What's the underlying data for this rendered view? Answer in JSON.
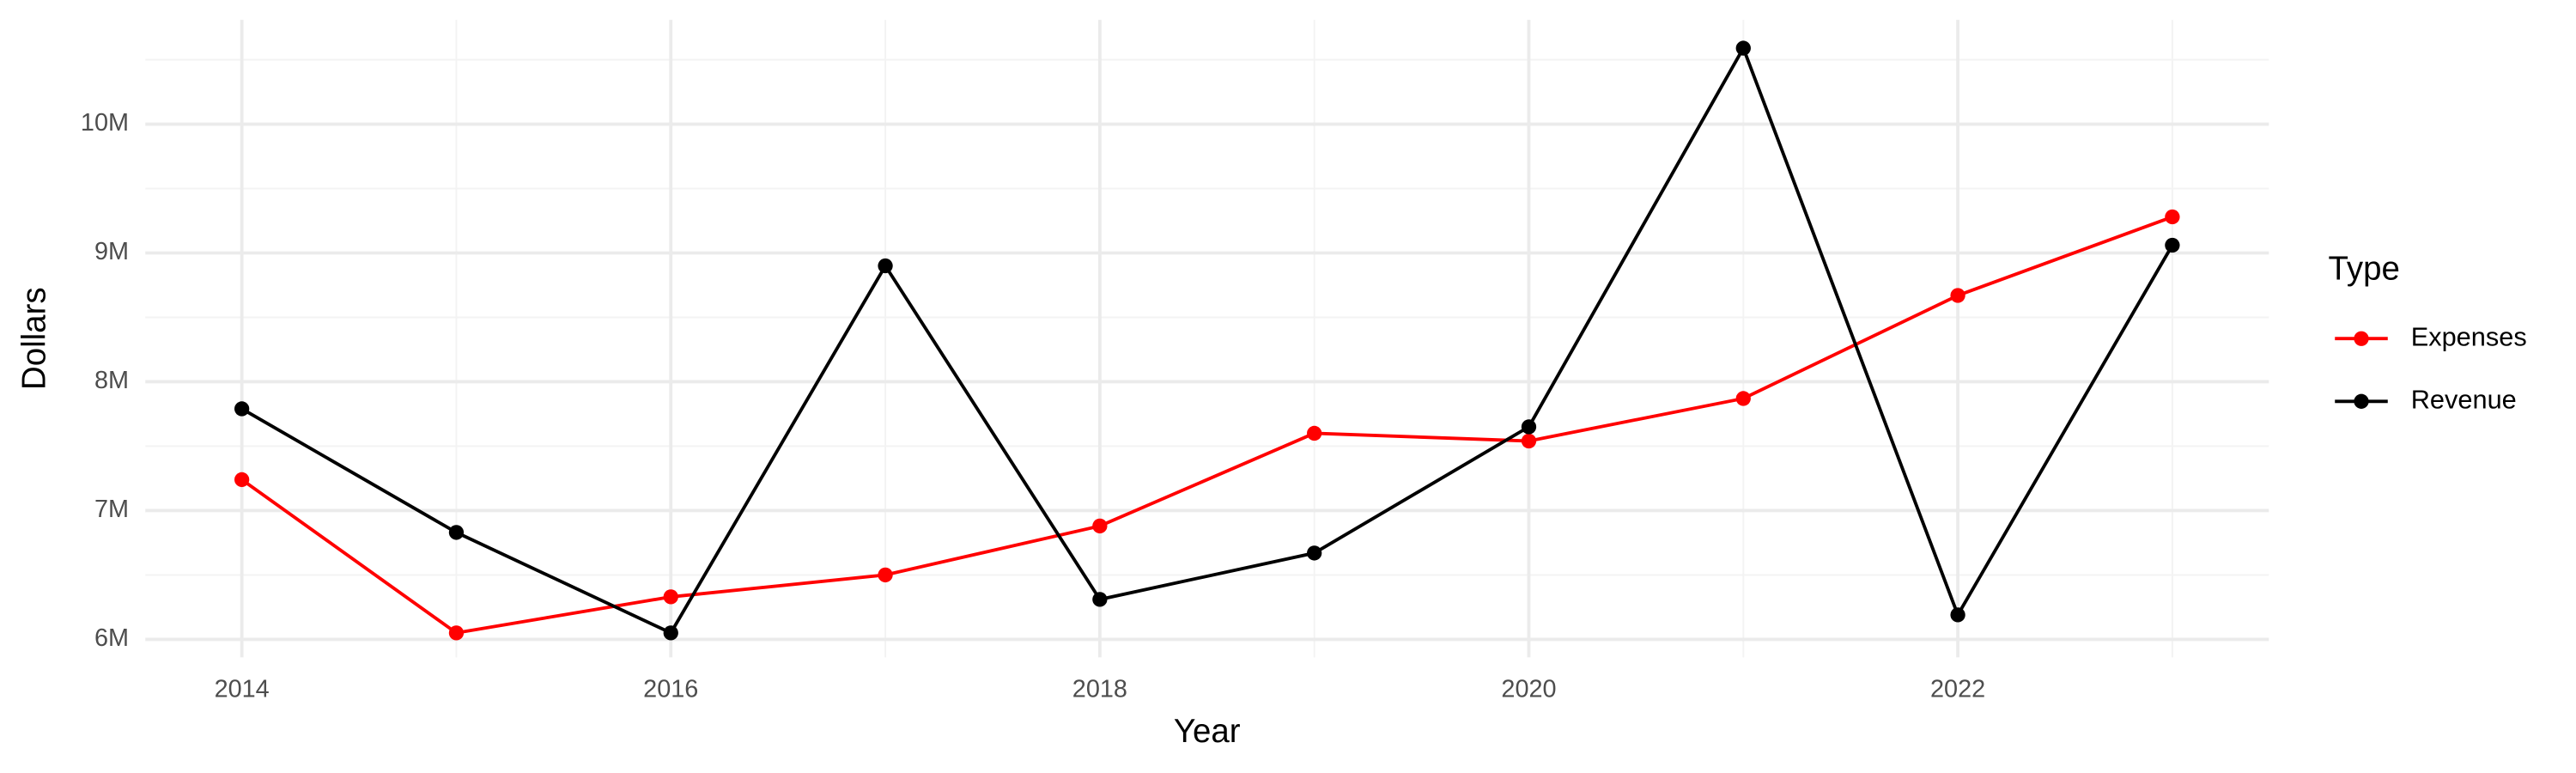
{
  "chart_data": {
    "type": "line",
    "x_label": "Year",
    "y_label": "Dollars",
    "x": [
      2014,
      2015,
      2016,
      2017,
      2018,
      2019,
      2020,
      2021,
      2022,
      2023
    ],
    "series": [
      {
        "name": "Expenses",
        "color": "#ff0000",
        "values": [
          7240000,
          6050000,
          6330000,
          6500000,
          6880000,
          7600000,
          7540000,
          7870000,
          8670000,
          9280000
        ]
      },
      {
        "name": "Revenue",
        "color": "#000000",
        "values": [
          7790000,
          6830000,
          6050000,
          8900000,
          6310000,
          6670000,
          7650000,
          10590000,
          6190000,
          9060000
        ]
      }
    ],
    "xlim": [
      2013.55,
      2023.45
    ],
    "xticks": [
      2014,
      2016,
      2018,
      2020,
      2022
    ],
    "ylim": [
      5860000,
      10810000
    ],
    "yticks": [
      {
        "value": 6000000,
        "label": "6M"
      },
      {
        "value": 7000000,
        "label": "7M"
      },
      {
        "value": 8000000,
        "label": "8M"
      },
      {
        "value": 9000000,
        "label": "9M"
      },
      {
        "value": 10000000,
        "label": "10M"
      }
    ],
    "grid": true,
    "legend_title": "Type",
    "legend_position": "right"
  }
}
